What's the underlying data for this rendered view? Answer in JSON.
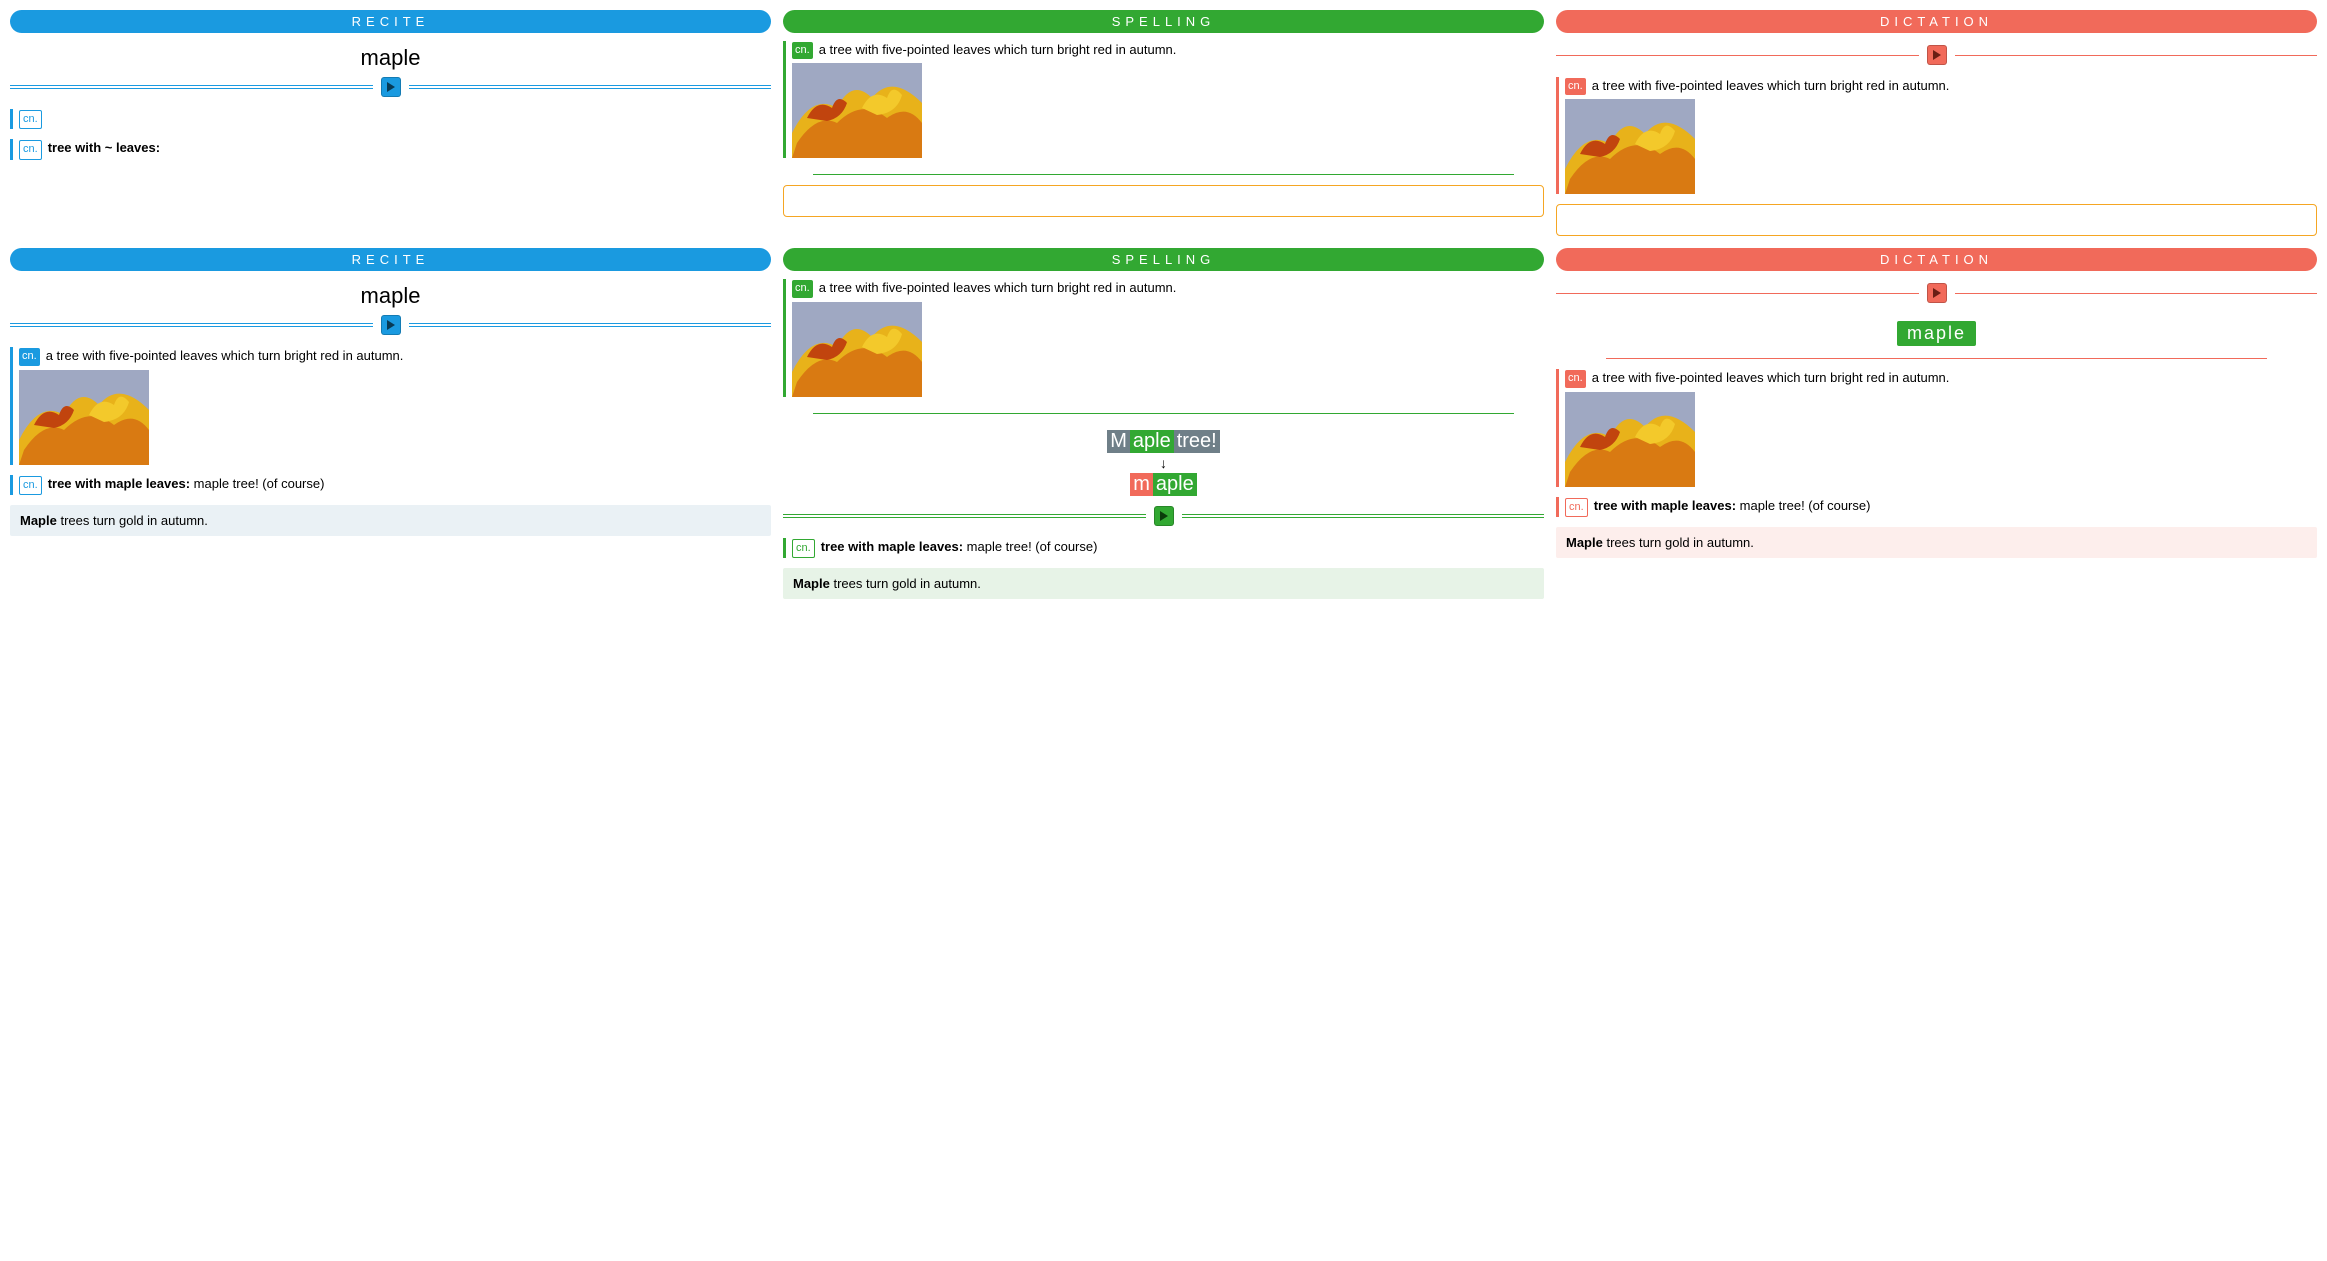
{
  "colors": {
    "recite": "#1a9ae0",
    "spelling": "#32a832",
    "dictation": "#f16a5a",
    "input_border": "#f5a623",
    "recite_sentence_bg": "#eaf1f5",
    "spelling_sentence_bg": "#e7f3e7",
    "dictation_sentence_bg": "#fdeeec",
    "feedback_gray": "#6f7f88"
  },
  "labels": {
    "recite": "RECITE",
    "spelling": "SPELLING",
    "dictation": "DICTATION"
  },
  "word": "maple",
  "definition": {
    "pos": "cn.",
    "text": "a tree with five-pointed leaves which turn bright red in autumn."
  },
  "mnemonic": {
    "pos": "cn.",
    "hidden_label": "tree with ~ leaves:",
    "revealed_label": "tree with maple leaves:",
    "revealed_answer": "maple tree! (of course)"
  },
  "sentence": {
    "bold": "Maple",
    "rest": " trees turn gold in autumn."
  },
  "spelling_feedback": {
    "attempt": [
      {
        "text": "M",
        "cls": "gray"
      },
      {
        "text": "aple",
        "cls": "green"
      },
      {
        "text": " tree!",
        "cls": "gray"
      }
    ],
    "correct": [
      {
        "text": "m",
        "cls": "red"
      },
      {
        "text": "aple",
        "cls": "green"
      }
    ]
  },
  "dictation_answer": "maple"
}
